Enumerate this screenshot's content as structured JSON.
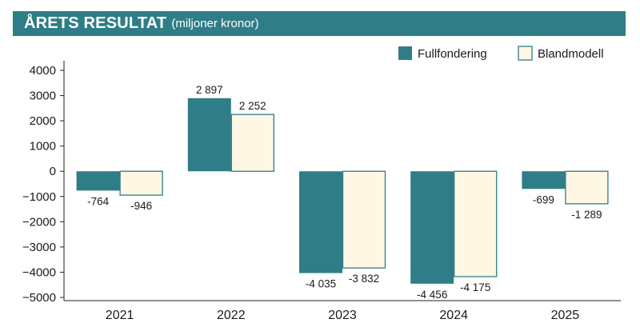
{
  "header": {
    "title": "ÅRETS RESULTAT",
    "subtitle": "(miljoner kronor)"
  },
  "colors": {
    "header_bg": "#2f7d87",
    "fullfondering": "#2f7d87",
    "blandmodell_fill": "#fdf7e3",
    "blandmodell_stroke": "#2f7d87"
  },
  "chart_data": {
    "type": "bar",
    "title": "ÅRETS RESULTAT",
    "subtitle": "(miljoner kronor)",
    "categories": [
      "2021",
      "2022",
      "2023",
      "2024",
      "2025"
    ],
    "series": [
      {
        "name": "Fullfondering",
        "values": [
          -764,
          2897,
          -4035,
          -4456,
          -699
        ],
        "labels": [
          "-764",
          "2 897",
          "-4 035",
          "-4 456",
          "-699"
        ],
        "color": "#2f7d87"
      },
      {
        "name": "Blandmodell",
        "values": [
          -946,
          2252,
          -3832,
          -4175,
          -1289
        ],
        "labels": [
          "-946",
          "2 252",
          "-3 832",
          "-4 175",
          "-1 289"
        ],
        "color": "#fdf7e3"
      }
    ],
    "y_ticks": [
      4000,
      3000,
      2000,
      1000,
      0,
      -1000,
      -2000,
      -3000,
      -4000,
      -5000
    ],
    "y_tick_labels": [
      "4000",
      "3000",
      "2000",
      "1000",
      "0",
      "−1000",
      "−2000",
      "−3000",
      "−4000",
      "−5000"
    ],
    "ylim": [
      -5000,
      4000
    ],
    "xlabel": "",
    "ylabel": "",
    "legend_position": "top-right",
    "grid": false
  }
}
